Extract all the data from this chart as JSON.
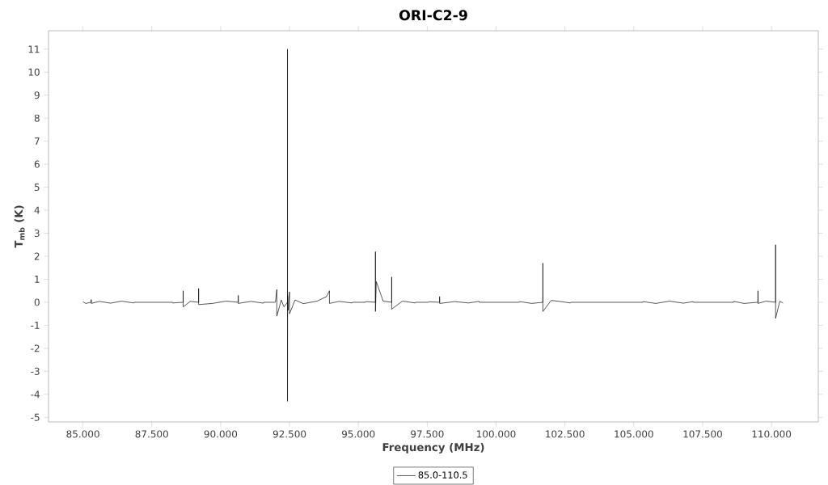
{
  "chart_data": {
    "type": "line",
    "title": "ORI-C2-9",
    "xlabel": "Frequency (MHz)",
    "ylabel": "T$_{mb}$ (K)",
    "xlim": [
      83.75,
      111.7
    ],
    "ylim": [
      -5.2,
      11.8
    ],
    "xticks": [
      {
        "value": 85,
        "label": "85.000"
      },
      {
        "value": 87.5,
        "label": "87.500"
      },
      {
        "value": 90,
        "label": "90.000"
      },
      {
        "value": 92.5,
        "label": "92.500"
      },
      {
        "value": 95,
        "label": "95.000"
      },
      {
        "value": 97.5,
        "label": "97.500"
      },
      {
        "value": 100,
        "label": "100.000"
      },
      {
        "value": 102.5,
        "label": "102.500"
      },
      {
        "value": 105,
        "label": "105.000"
      },
      {
        "value": 107.5,
        "label": "107.500"
      },
      {
        "value": 110,
        "label": "110.000"
      }
    ],
    "yticks": [
      -5,
      -4,
      -3,
      -2,
      -1,
      0,
      1,
      2,
      3,
      4,
      5,
      6,
      7,
      8,
      9,
      10,
      11
    ],
    "grid": false,
    "legend": "bottom",
    "series": [
      {
        "name": "85.0-110.5",
        "color": "#000000",
        "x": [
          85.0,
          85.1,
          85.3,
          85.3,
          85.3,
          85.6,
          86.0,
          86.4,
          86.85,
          86.86,
          88.25,
          88.26,
          88.64,
          88.64,
          88.64,
          88.9,
          89.2,
          89.2,
          89.2,
          89.7,
          90.2,
          90.64,
          90.64,
          90.64,
          91.1,
          91.55,
          91.56,
          91.98,
          91.99,
          92.04,
          92.04,
          92.2,
          92.3,
          92.426,
          92.426,
          92.426,
          92.43,
          92.45,
          92.5,
          92.5,
          92.7,
          93.0,
          93.5,
          93.85,
          93.95,
          93.95,
          94.3,
          94.77,
          94.78,
          95.26,
          95.27,
          95.62,
          95.62,
          95.62,
          95.65,
          95.9,
          96.21,
          96.21,
          96.21,
          96.6,
          97.06,
          97.07,
          97.55,
          97.56,
          97.95,
          97.95,
          97.95,
          98.5,
          99.0,
          99.38,
          99.39,
          100.84,
          100.85,
          101.3,
          101.7,
          101.7,
          101.7,
          102.0,
          102.3,
          102.7,
          102.71,
          105.33,
          105.34,
          105.8,
          106.3,
          106.8,
          107.16,
          107.17,
          108.62,
          108.63,
          109.0,
          109.51,
          109.51,
          109.51,
          109.8,
          110.15,
          110.15,
          110.15,
          110.3,
          110.42
        ],
        "values": [
          0.02,
          -0.05,
          0,
          0.12,
          -0.05,
          0.04,
          -0.04,
          0.05,
          -0.03,
          0,
          0,
          -0.03,
          0,
          0.5,
          -0.2,
          0.04,
          0,
          0.6,
          -0.1,
          -0.05,
          0.05,
          0,
          0.3,
          -0.05,
          0.04,
          -0.04,
          0,
          0,
          0.03,
          0.55,
          -0.6,
          0.1,
          -0.2,
          0,
          11.0,
          -4.3,
          0.3,
          -0.35,
          0.45,
          -0.5,
          0.1,
          -0.06,
          0.05,
          0.25,
          0.5,
          -0.05,
          0.04,
          -0.03,
          0,
          0,
          0.03,
          0,
          2.2,
          -0.4,
          0.9,
          0.05,
          0,
          1.1,
          -0.3,
          0.05,
          -0.03,
          0,
          0,
          0.02,
          0,
          0.25,
          -0.05,
          0.03,
          -0.03,
          0.04,
          0,
          0,
          0.03,
          -0.05,
          0,
          1.7,
          -0.4,
          0.08,
          0.04,
          -0.03,
          0,
          0,
          0.03,
          -0.05,
          0.05,
          -0.04,
          0.03,
          0,
          0,
          0.04,
          -0.05,
          0,
          0.5,
          -0.05,
          0.05,
          0,
          2.5,
          -0.7,
          0.04,
          -0.03
        ]
      }
    ]
  }
}
